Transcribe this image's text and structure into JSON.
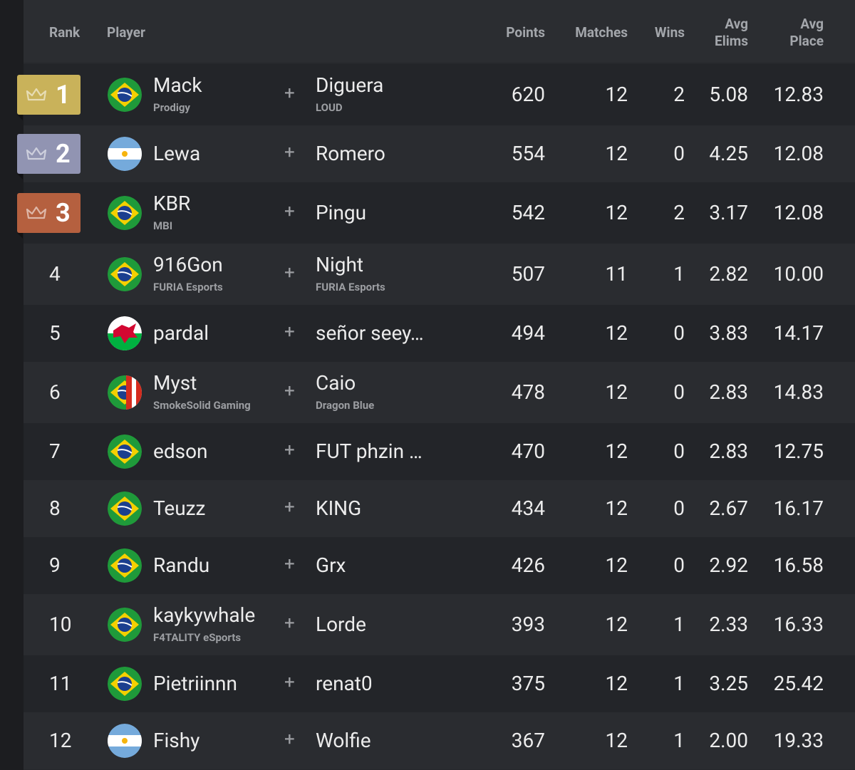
{
  "header": {
    "columns": [
      "Rank",
      "Player",
      "Points",
      "Matches",
      "Wins",
      "Avg Elims",
      "Avg Place"
    ]
  },
  "rows": [
    {
      "rank": 1,
      "player": "Mack",
      "player_team": "Prodigy",
      "partner": "Diguera",
      "partner_team": "LOUD",
      "points": 620,
      "matches": 12,
      "wins": 2,
      "avg_elims": "5.08",
      "avg_place": "12.83"
    },
    {
      "rank": 2,
      "player": "Lewa",
      "partner": "Romero",
      "points": 554,
      "matches": 12,
      "wins": 0,
      "avg_elims": "4.25",
      "avg_place": "12.08"
    },
    {
      "rank": 3,
      "player": "KBR",
      "player_team": "MBI",
      "partner": "Pingu",
      "points": 542,
      "matches": 12,
      "wins": 2,
      "avg_elims": "3.17",
      "avg_place": "12.08"
    },
    {
      "rank": 4,
      "player": "916Gon",
      "player_team": "FURIA Esports",
      "partner": "Night",
      "partner_team": "FURIA Esports",
      "points": 507,
      "matches": 11,
      "wins": 1,
      "avg_elims": "2.82",
      "avg_place": "10.00"
    },
    {
      "rank": 5,
      "player": "pardal",
      "partner": "señor seey…",
      "points": 494,
      "matches": 12,
      "wins": 0,
      "avg_elims": "3.83",
      "avg_place": "14.17"
    },
    {
      "rank": 6,
      "player": "Myst",
      "player_team": "SmokeSolid Gaming",
      "partner": "Caio",
      "partner_team": "Dragon Blue",
      "points": 478,
      "matches": 12,
      "wins": 0,
      "avg_elims": "2.83",
      "avg_place": "14.83"
    },
    {
      "rank": 7,
      "player": "edson",
      "partner": "FUT phzin …",
      "points": 470,
      "matches": 12,
      "wins": 0,
      "avg_elims": "2.83",
      "avg_place": "12.75"
    },
    {
      "rank": 8,
      "player": "Teuzz",
      "partner": "KING",
      "points": 434,
      "matches": 12,
      "wins": 0,
      "avg_elims": "2.67",
      "avg_place": "16.17"
    },
    {
      "rank": 9,
      "player": "Randu",
      "partner": "Grx",
      "points": 426,
      "matches": 12,
      "wins": 0,
      "avg_elims": "2.92",
      "avg_place": "16.58"
    },
    {
      "rank": 10,
      "player": "kaykywhale",
      "player_team": "F4TALITY eSports",
      "partner": "Lorde",
      "points": 393,
      "matches": 12,
      "wins": 1,
      "avg_elims": "2.33",
      "avg_place": "16.33"
    },
    {
      "rank": 11,
      "player": "Pietriinnn",
      "partner": "renat0",
      "points": 375,
      "matches": 12,
      "wins": 1,
      "avg_elims": "3.25",
      "avg_place": "25.42"
    },
    {
      "rank": 12,
      "player": "Fishy",
      "partner": "Wolfie",
      "points": 367,
      "matches": 12,
      "wins": 1,
      "avg_elims": "2.00",
      "avg_place": "19.33"
    }
  ]
}
